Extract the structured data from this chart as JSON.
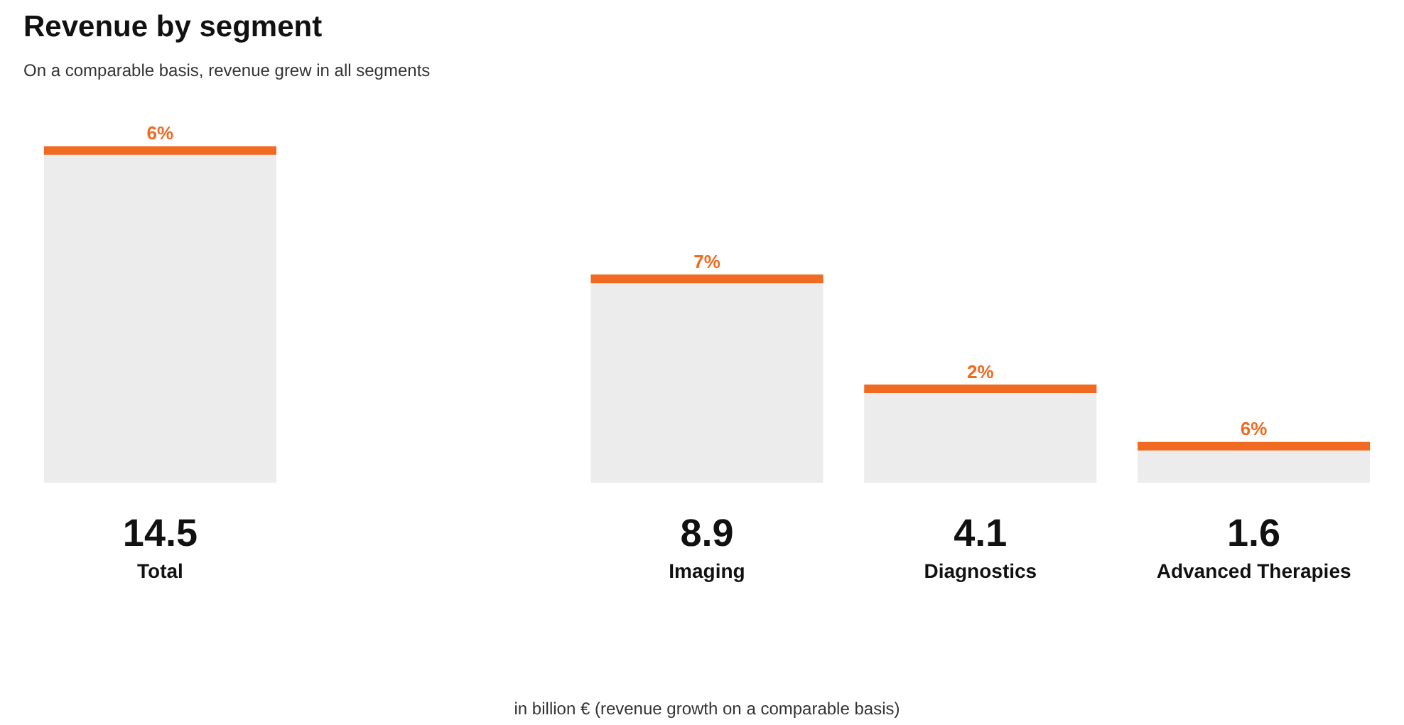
{
  "chart_data": {
    "type": "bar",
    "title": "Revenue by segment",
    "subtitle": "On a comparable basis, revenue grew in all segments",
    "categories": [
      "Total",
      null,
      "Imaging",
      "Diagnostics",
      "Advanced Therapies"
    ],
    "tick_labels": false,
    "data_labels": true,
    "series": [
      {
        "color": "#ececec",
        "values": [
          14.5,
          null,
          8.9,
          4.1,
          1.6
        ]
      }
    ],
    "annotations": [
      "in billion € (revenue growth on a comparable basis)",
      {
        "text": "6%",
        "x": "Total",
        "y": 14.5
      },
      {
        "text": "7%",
        "x": "Imaging",
        "y": 8.9
      },
      {
        "text": "2%",
        "x": "Diagnostics",
        "y": 4.1
      },
      {
        "text": "6%",
        "x": "Advanced Therapies",
        "y": 1.6
      }
    ]
  }
}
